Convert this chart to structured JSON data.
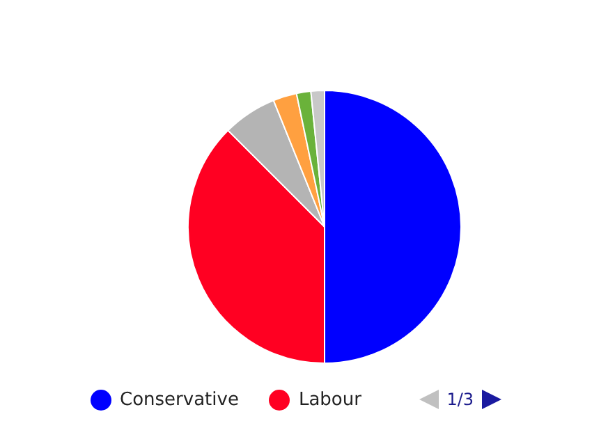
{
  "chart_data": {
    "type": "pie",
    "categories": [
      "Conservative",
      "Labour",
      null,
      null,
      null,
      null
    ],
    "values": [
      50,
      37.5,
      6.4,
      2.8,
      1.7,
      1.6
    ],
    "colors": [
      "#0000ff",
      "#ff0022",
      "#b4b4b4",
      "#ffa040",
      "#6ab23a",
      "#c8c8c8"
    ],
    "legend": "bottom",
    "annotations": [
      "1/3"
    ]
  }
}
